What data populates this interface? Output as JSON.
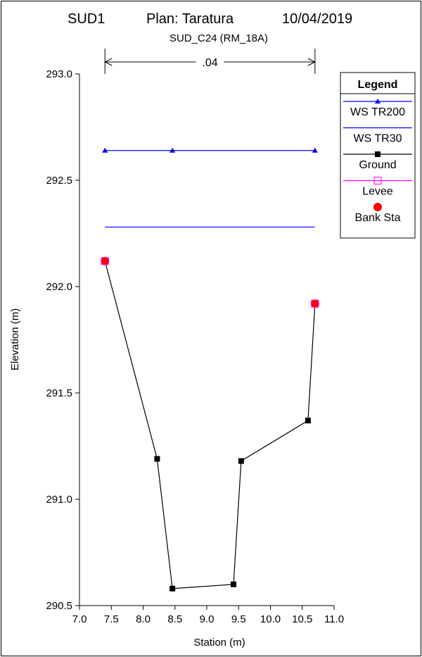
{
  "header": {
    "project": "SUD1",
    "plan": "Plan: Taratura",
    "date": "10/04/2019",
    "subtitle": "SUD_C24 (RM_18A)"
  },
  "chart_data": {
    "type": "line",
    "xlabel": "Station (m)",
    "ylabel": "Elevation (m)",
    "xlim": [
      7.0,
      11.0
    ],
    "ylim": [
      290.5,
      293.0
    ],
    "xticks": [
      "7.0",
      "7.5",
      "8.0",
      "8.5",
      "9.0",
      "9.5",
      "10.0",
      "10.5",
      "11.0"
    ],
    "yticks": [
      "290.5",
      "291.0",
      "291.5",
      "292.0",
      "292.5",
      "293.0"
    ],
    "manning": {
      "label": ".04",
      "x_start": 7.4,
      "x_end": 10.7
    },
    "series": [
      {
        "name": "WS TR200",
        "color": "#0000ff",
        "marker": "triangle",
        "x": [
          7.4,
          8.46,
          10.7
        ],
        "y": [
          292.64,
          292.64,
          292.64
        ]
      },
      {
        "name": "WS TR30",
        "color": "#0000ff",
        "marker": "none",
        "x": [
          7.4,
          10.7
        ],
        "y": [
          292.28,
          292.28
        ]
      },
      {
        "name": "Ground",
        "color": "#000000",
        "marker": "square",
        "x": [
          7.4,
          8.22,
          8.46,
          9.42,
          9.54,
          10.59,
          10.7
        ],
        "y": [
          292.12,
          291.19,
          290.58,
          290.6,
          291.18,
          291.37,
          291.92
        ]
      },
      {
        "name": "Levee",
        "color": "#ff00ff",
        "marker": "open-square",
        "x": [
          7.4,
          10.7
        ],
        "y": [
          292.12,
          291.92
        ]
      },
      {
        "name": "Bank Sta",
        "color": "#ff0000",
        "marker": "circle",
        "x": [
          7.4,
          10.7
        ],
        "y": [
          292.12,
          291.92
        ]
      }
    ],
    "legend": {
      "title": "Legend",
      "position": "top-right"
    }
  }
}
